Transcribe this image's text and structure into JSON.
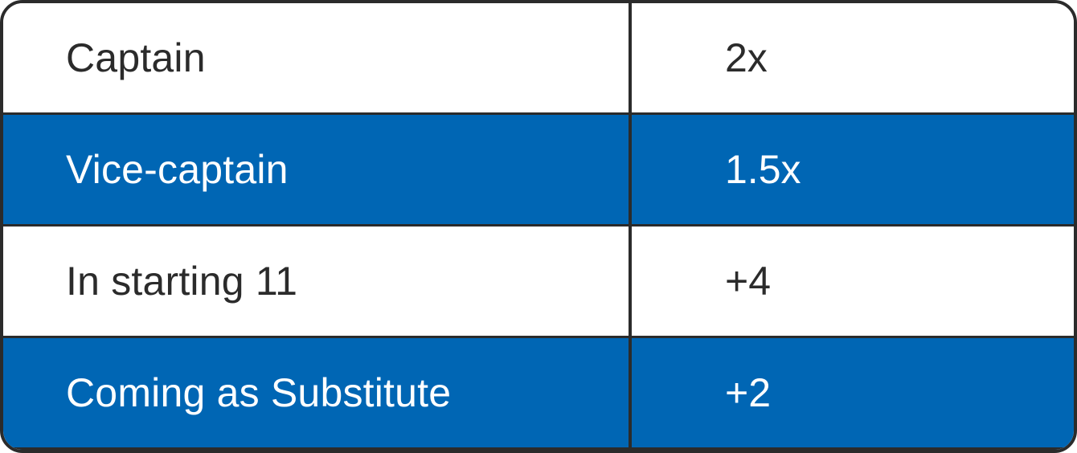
{
  "table": {
    "rows": [
      {
        "label": "Captain",
        "value": "2x",
        "style": "white"
      },
      {
        "label": "Vice-captain",
        "value": "1.5x",
        "style": "blue"
      },
      {
        "label": "In starting 11",
        "value": "+4",
        "style": "white"
      },
      {
        "label": "Coming as Substitute",
        "value": "+2",
        "style": "blue"
      }
    ]
  },
  "colors": {
    "accent_blue": "#0066b4",
    "border": "#2b2b2b",
    "text_dark": "#2b2b2b",
    "text_light": "#ffffff"
  }
}
